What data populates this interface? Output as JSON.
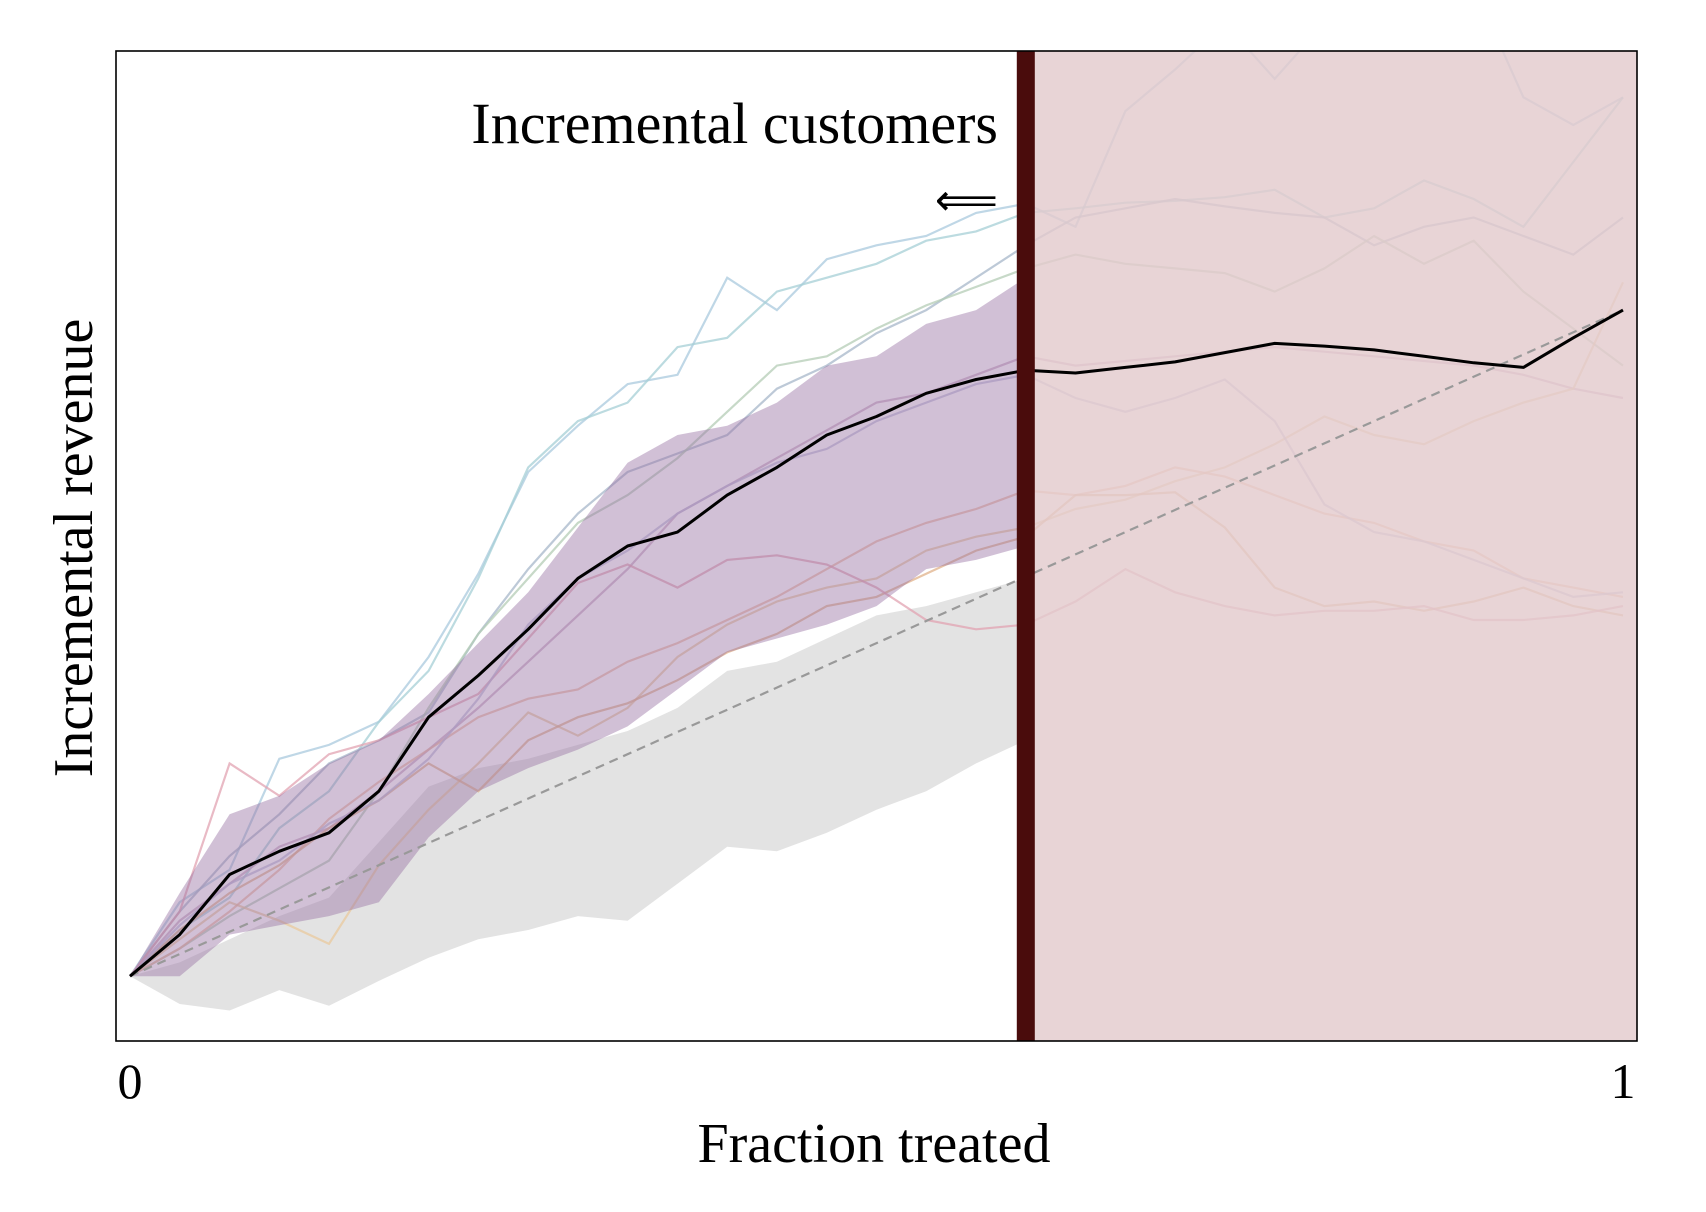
{
  "chart_data": {
    "type": "line",
    "title": "",
    "xlabel": "Fraction treated",
    "ylabel": "Incremental revenue",
    "xlim": [
      0,
      1
    ],
    "ylim": [
      -0.07,
      1.0
    ],
    "x_ticks": [
      "0",
      "1"
    ],
    "y_ticks": [],
    "grid": false,
    "annotation": {
      "text": "Incremental customers",
      "arrow": "⟸"
    },
    "cutoff": {
      "x": 0.6,
      "color": "#4a0c0c"
    },
    "shaded_region": {
      "from": 0.6,
      "to": 1.0,
      "color": "#e3cbcd"
    },
    "x": [
      0,
      0.0333,
      0.0667,
      0.1,
      0.1333,
      0.1667,
      0.2,
      0.2333,
      0.2667,
      0.3,
      0.3333,
      0.3667,
      0.4,
      0.4333,
      0.4667,
      0.5,
      0.5333,
      0.5667,
      0.6,
      0.6333,
      0.6667,
      0.7,
      0.7333,
      0.7667,
      0.8,
      0.8333,
      0.8667,
      0.9,
      0.9333,
      0.9667,
      1.0
    ],
    "mean_curve": {
      "color": "#000000",
      "values": [
        0,
        0.045,
        0.11,
        0.135,
        0.155,
        0.2,
        0.28,
        0.325,
        0.375,
        0.43,
        0.465,
        0.48,
        0.52,
        0.55,
        0.585,
        0.605,
        0.63,
        0.645,
        0.655,
        0.652,
        0.658,
        0.664,
        0.674,
        0.684,
        0.681,
        0.677,
        0.67,
        0.663,
        0.658,
        0.69,
        0.72
      ]
    },
    "diagonal_reference": {
      "style": "dashed",
      "color": "#999999",
      "values": [
        0,
        0.72
      ]
    },
    "band_upper": {
      "color": "#9a74a4",
      "values": [
        0,
        0.09,
        0.175,
        0.195,
        0.23,
        0.255,
        0.305,
        0.36,
        0.415,
        0.485,
        0.555,
        0.585,
        0.595,
        0.62,
        0.66,
        0.67,
        0.705,
        0.72,
        0.755
      ]
    },
    "band_lower": {
      "values": [
        0,
        0,
        0.045,
        0.055,
        0.065,
        0.08,
        0.15,
        0.2,
        0.225,
        0.245,
        0.27,
        0.31,
        0.35,
        0.365,
        0.38,
        0.4,
        0.44,
        0.45,
        0.465
      ]
    },
    "gray_band_upper": {
      "color": "#e3e3e3",
      "values": [
        0,
        0.015,
        0.04,
        0.065,
        0.085,
        0.145,
        0.205,
        0.225,
        0.235,
        0.25,
        0.265,
        0.29,
        0.33,
        0.34,
        0.365,
        0.39,
        0.4,
        0.415,
        0.43
      ]
    },
    "gray_band_lower": {
      "values": [
        0,
        -0.03,
        -0.037,
        -0.015,
        -0.032,
        -0.005,
        0.02,
        0.04,
        0.05,
        0.065,
        0.06,
        0.1,
        0.14,
        0.135,
        0.155,
        0.18,
        0.2,
        0.23,
        0.255
      ]
    },
    "runs": [
      {
        "color": "#a9c9de",
        "values": [
          0,
          0.08,
          0.115,
          0.235,
          0.25,
          0.275,
          0.345,
          0.435,
          0.545,
          0.595,
          0.64,
          0.65,
          0.755,
          0.72,
          0.775,
          0.79,
          0.8,
          0.825,
          0.835,
          0.81,
          0.935,
          0.98,
          1.03,
          0.97,
          1.03,
          1.05,
          1.04,
          1.07,
          0.95,
          0.92,
          0.95
        ]
      },
      {
        "color": "#a5cfd6",
        "values": [
          0,
          0.05,
          0.085,
          0.16,
          0.2,
          0.275,
          0.33,
          0.43,
          0.55,
          0.6,
          0.62,
          0.68,
          0.69,
          0.74,
          0.755,
          0.77,
          0.795,
          0.805,
          0.825,
          0.83,
          0.836,
          0.838,
          0.842,
          0.85,
          0.82,
          0.83,
          0.86,
          0.84,
          0.81,
          0.88,
          0.95
        ]
      },
      {
        "color": "#a7b7c9",
        "values": [
          0,
          0.07,
          0.13,
          0.175,
          0.23,
          0.255,
          0.285,
          0.37,
          0.44,
          0.5,
          0.545,
          0.565,
          0.585,
          0.635,
          0.66,
          0.695,
          0.72,
          0.755,
          0.79,
          0.82,
          0.83,
          0.84,
          0.832,
          0.825,
          0.82,
          0.79,
          0.81,
          0.82,
          0.8,
          0.78,
          0.82
        ]
      },
      {
        "color": "#c7a7c1",
        "values": [
          0,
          0.06,
          0.1,
          0.14,
          0.16,
          0.2,
          0.245,
          0.29,
          0.34,
          0.39,
          0.44,
          0.5,
          0.53,
          0.56,
          0.59,
          0.62,
          0.63,
          0.65,
          0.67,
          0.66,
          0.665,
          0.67,
          0.675,
          0.68,
          0.675,
          0.67,
          0.665,
          0.66,
          0.65,
          0.635,
          0.625
        ]
      },
      {
        "color": "#b4ccb5",
        "values": [
          0,
          0.03,
          0.065,
          0.095,
          0.125,
          0.2,
          0.29,
          0.37,
          0.43,
          0.49,
          0.52,
          0.56,
          0.61,
          0.66,
          0.67,
          0.7,
          0.725,
          0.745,
          0.765,
          0.78,
          0.77,
          0.765,
          0.76,
          0.74,
          0.765,
          0.8,
          0.77,
          0.795,
          0.74,
          0.7,
          0.66
        ]
      },
      {
        "color": "#e9c99e",
        "values": [
          0,
          0.04,
          0.08,
          0.06,
          0.035,
          0.12,
          0.18,
          0.23,
          0.285,
          0.26,
          0.29,
          0.345,
          0.38,
          0.405,
          0.42,
          0.43,
          0.46,
          0.475,
          0.485,
          0.505,
          0.515,
          0.535,
          0.55,
          0.575,
          0.605,
          0.585,
          0.575,
          0.6,
          0.62,
          0.635,
          0.75
        ]
      },
      {
        "color": "#ebbaa0",
        "values": [
          0,
          0.03,
          0.07,
          0.115,
          0.17,
          0.21,
          0.245,
          0.28,
          0.3,
          0.31,
          0.34,
          0.36,
          0.385,
          0.41,
          0.44,
          0.47,
          0.49,
          0.505,
          0.525,
          0.52,
          0.53,
          0.55,
          0.54,
          0.52,
          0.5,
          0.49,
          0.47,
          0.46,
          0.43,
          0.42,
          0.41
        ]
      },
      {
        "color": "#e0b28a",
        "values": [
          0,
          0.05,
          0.09,
          0.12,
          0.16,
          0.19,
          0.23,
          0.2,
          0.255,
          0.28,
          0.295,
          0.32,
          0.35,
          0.37,
          0.4,
          0.41,
          0.435,
          0.46,
          0.475,
          0.52,
          0.52,
          0.523,
          0.485,
          0.42,
          0.4,
          0.405,
          0.395,
          0.405,
          0.42,
          0.4,
          0.39
        ]
      },
      {
        "color": "#e1a3b1",
        "values": [
          0,
          0.07,
          0.23,
          0.195,
          0.24,
          0.255,
          0.28,
          0.305,
          0.365,
          0.425,
          0.445,
          0.42,
          0.45,
          0.455,
          0.445,
          0.42,
          0.385,
          0.375,
          0.38,
          0.405,
          0.44,
          0.415,
          0.4,
          0.39,
          0.395,
          0.395,
          0.4,
          0.385,
          0.385,
          0.39,
          0.4
        ]
      },
      {
        "color": "#bcbcd8",
        "values": [
          0,
          0.055,
          0.1,
          0.125,
          0.165,
          0.19,
          0.235,
          0.3,
          0.38,
          0.43,
          0.46,
          0.5,
          0.53,
          0.555,
          0.57,
          0.6,
          0.62,
          0.64,
          0.65,
          0.625,
          0.61,
          0.625,
          0.645,
          0.6,
          0.51,
          0.48,
          0.47,
          0.45,
          0.43,
          0.41,
          0.415
        ]
      }
    ]
  }
}
